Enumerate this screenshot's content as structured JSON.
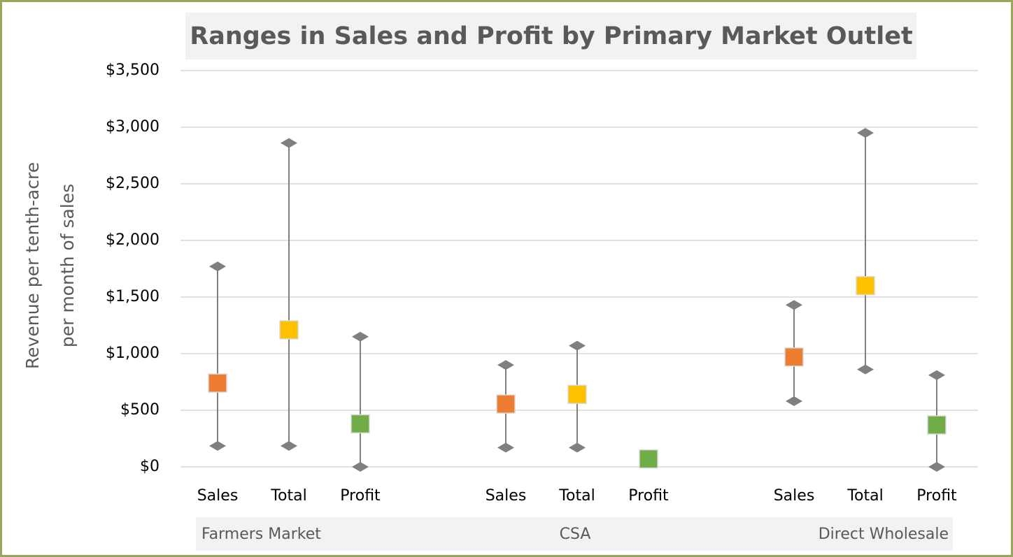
{
  "chart_data": {
    "type": "high-low",
    "title": "Ranges in Sales and Profit by Primary Market Outlet",
    "y_label": [
      "Revenue per tenth-acre",
      "per month of sales"
    ],
    "groups": [
      "Farmers Market",
      "CSA",
      "Direct Wholesale"
    ],
    "categories": [
      "Sales",
      "Total",
      "Profit",
      "Sales",
      "Total",
      "Profit",
      "Sales",
      "Total",
      "Profit"
    ],
    "high": [
      1770,
      2860,
      1150,
      900,
      1070,
      70,
      1430,
      2950,
      810
    ],
    "low": [
      185,
      185,
      0,
      170,
      170,
      70,
      580,
      860,
      0
    ],
    "marker": [
      740,
      1210,
      380,
      555,
      640,
      70,
      970,
      1600,
      370
    ],
    "colors": [
      "#ed7d31",
      "#ffc000",
      "#70ad47",
      "#ed7d31",
      "#ffc000",
      "#70ad47",
      "#ed7d31",
      "#ffc000",
      "#70ad47"
    ],
    "range_color": "#7f7f7f",
    "ylim": [
      0,
      3500
    ],
    "yticks": [
      {
        "value": 0,
        "label": "$0"
      },
      {
        "value": 500,
        "label": "$500"
      },
      {
        "value": 1000,
        "label": "$1,000"
      },
      {
        "value": 1500,
        "label": "$1,500"
      },
      {
        "value": 2000,
        "label": "$2,000"
      },
      {
        "value": 2500,
        "label": "$2,500"
      },
      {
        "value": 3000,
        "label": "$3,000"
      },
      {
        "value": 3500,
        "label": "$3,500"
      }
    ],
    "grid": true
  }
}
